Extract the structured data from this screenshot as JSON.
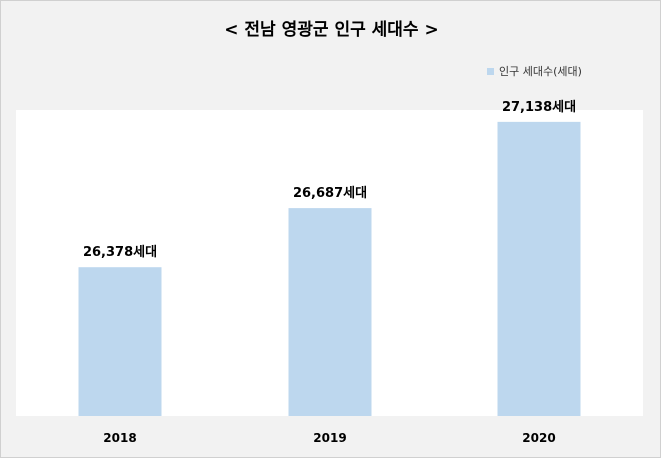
{
  "chart_data": {
    "type": "bar",
    "title": "< 전남 영광군 인구 세대수 >",
    "categories": [
      "2018",
      "2019",
      "2020"
    ],
    "series": [
      {
        "name": "인구 세대수(세대)",
        "values": [
          26378,
          26687,
          27138
        ],
        "labels": [
          "26,378세대",
          "26,687세대",
          "27,138세대"
        ]
      }
    ],
    "ylim": [
      25600,
      27200
    ],
    "legend": "top-right",
    "grid": false,
    "bar_color": "#bdd7ee",
    "plot_bg": "#ffffff",
    "chart_bg": "#f2f2f2"
  }
}
